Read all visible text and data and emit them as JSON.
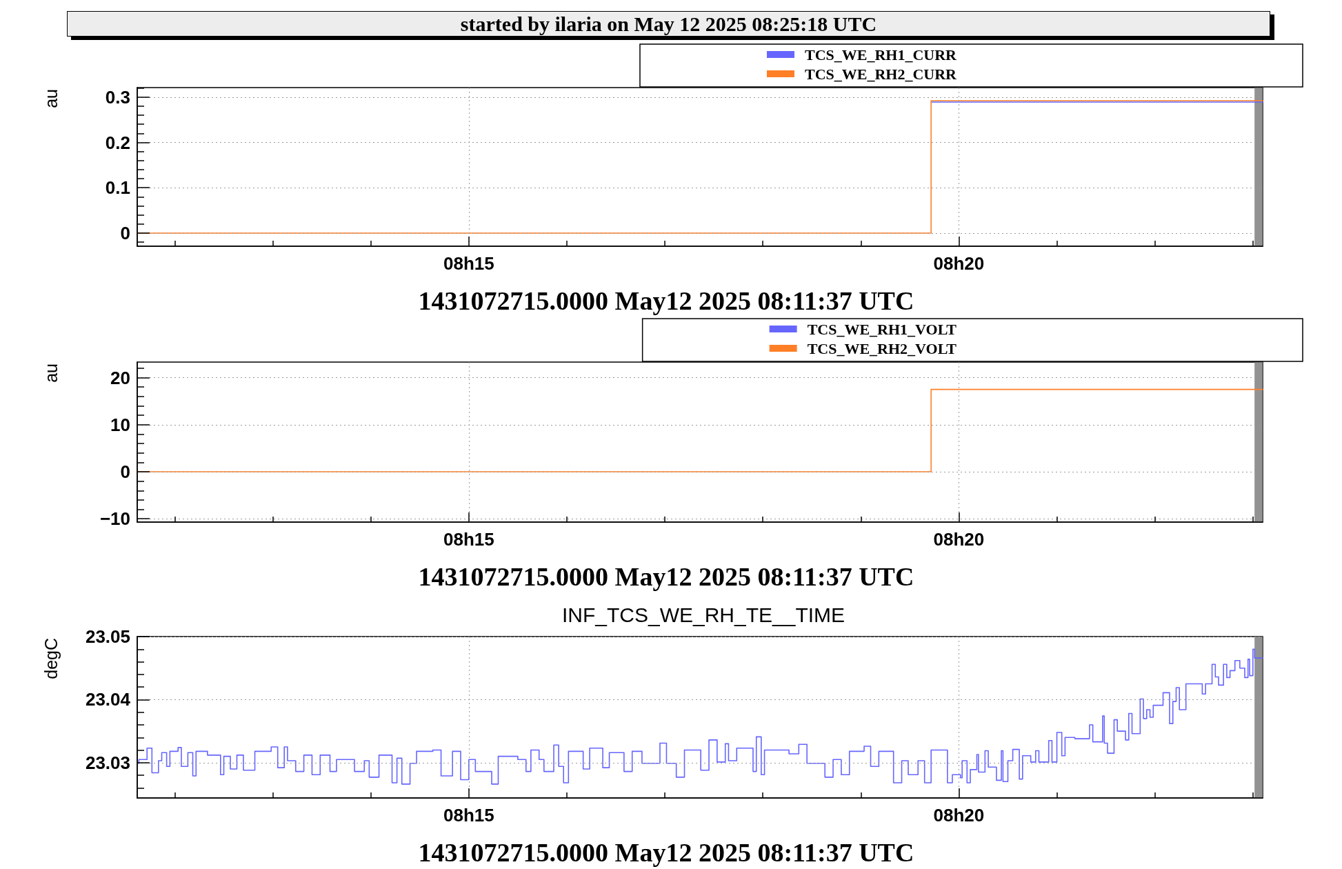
{
  "chart_data": [
    {
      "type": "step",
      "title": "started by ilaria on May 12 2025 08:25:18 UTC",
      "xlabel": "1431072715.0000 May12 2025 08:11:37 UTC",
      "ylabel": "au",
      "x": [
        "2025-05-12T08:11:37",
        "2025-05-12T08:19:43",
        "2025-05-12T08:23:06"
      ],
      "series": [
        {
          "name": "TCS_WE_RH1_CURR",
          "color": "#6666ff",
          "values": [
            null,
            0.289,
            0.289
          ]
        },
        {
          "name": "TCS_WE_RH2_CURR",
          "color": "#ff7f27",
          "values": [
            0,
            0.292,
            0.292
          ]
        }
      ],
      "xlim": [
        "2025-05-12T08:11:37",
        "2025-05-12T08:23:06"
      ],
      "xticks": [
        {
          "value": "2025-05-12T08:12",
          "label": null
        },
        {
          "value": "2025-05-12T08:13",
          "label": null
        },
        {
          "value": "2025-05-12T08:14",
          "label": null
        },
        {
          "value": "2025-05-12T08:15",
          "label": "08h15"
        },
        {
          "value": "2025-05-12T08:16",
          "label": null
        },
        {
          "value": "2025-05-12T08:17",
          "label": null
        },
        {
          "value": "2025-05-12T08:18",
          "label": null
        },
        {
          "value": "2025-05-12T08:19",
          "label": null
        },
        {
          "value": "2025-05-12T08:20",
          "label": "08h20"
        },
        {
          "value": "2025-05-12T08:21",
          "label": null
        },
        {
          "value": "2025-05-12T08:22",
          "label": null
        },
        {
          "value": "2025-05-12T08:23",
          "label": null
        }
      ],
      "ylim": [
        -0.029,
        0.321
      ],
      "yticks": [
        {
          "value": -0.02,
          "label": null
        },
        0,
        {
          "value": 0.02,
          "label": null
        },
        {
          "value": 0.04,
          "label": null
        },
        {
          "value": 0.06,
          "label": null
        },
        {
          "value": 0.08,
          "label": null
        },
        0.1,
        {
          "value": 0.12,
          "label": null
        },
        {
          "value": 0.14,
          "label": null
        },
        {
          "value": 0.16,
          "label": null
        },
        {
          "value": 0.18,
          "label": null
        },
        0.2,
        {
          "value": 0.22,
          "label": null
        },
        {
          "value": 0.24,
          "label": null
        },
        {
          "value": 0.26,
          "label": null
        },
        {
          "value": 0.28,
          "label": null
        },
        0.3,
        {
          "value": 0.32,
          "label": null
        }
      ],
      "grid": true,
      "legend": "top right",
      "bands": [
        {
          "axis": "x",
          "from": "2025-05-12T08:23:01",
          "to": "2025-05-12T08:23:06",
          "color": "#7f7f7f"
        }
      ]
    },
    {
      "type": "step",
      "xlabel": "1431072715.0000 May12 2025 08:11:37 UTC",
      "ylabel": "au",
      "x": [
        "2025-05-12T08:11:37",
        "2025-05-12T08:19:43",
        "2025-05-12T08:23:06"
      ],
      "series": [
        {
          "name": "TCS_WE_RH1_VOLT",
          "color": "#6666ff",
          "values": [
            null,
            null,
            null
          ]
        },
        {
          "name": "TCS_WE_RH2_VOLT",
          "color": "#ff7f27",
          "values": [
            0,
            17.5,
            17.5
          ]
        }
      ],
      "xlim": [
        "2025-05-12T08:11:37",
        "2025-05-12T08:23:06"
      ],
      "xticks": [
        {
          "value": "2025-05-12T08:12",
          "label": null
        },
        {
          "value": "2025-05-12T08:13",
          "label": null
        },
        {
          "value": "2025-05-12T08:14",
          "label": null
        },
        {
          "value": "2025-05-12T08:15",
          "label": "08h15"
        },
        {
          "value": "2025-05-12T08:16",
          "label": null
        },
        {
          "value": "2025-05-12T08:17",
          "label": null
        },
        {
          "value": "2025-05-12T08:18",
          "label": null
        },
        {
          "value": "2025-05-12T08:19",
          "label": null
        },
        {
          "value": "2025-05-12T08:20",
          "label": "08h20"
        },
        {
          "value": "2025-05-12T08:21",
          "label": null
        },
        {
          "value": "2025-05-12T08:22",
          "label": null
        },
        {
          "value": "2025-05-12T08:23",
          "label": null
        }
      ],
      "ylim": [
        -10.7,
        23.3
      ],
      "yticks": [
        {
          "value": -10,
          "label": "−10"
        },
        {
          "value": -8,
          "label": null
        },
        {
          "value": -6,
          "label": null
        },
        {
          "value": -4,
          "label": null
        },
        {
          "value": -2,
          "label": null
        },
        0,
        {
          "value": 2,
          "label": null
        },
        {
          "value": 4,
          "label": null
        },
        {
          "value": 6,
          "label": null
        },
        {
          "value": 8,
          "label": null
        },
        10,
        {
          "value": 12,
          "label": null
        },
        {
          "value": 14,
          "label": null
        },
        {
          "value": 16,
          "label": null
        },
        {
          "value": 18,
          "label": null
        },
        20,
        {
          "value": 22,
          "label": null
        }
      ],
      "grid": true,
      "legend": "top right",
      "bands": [
        {
          "axis": "x",
          "from": "2025-05-12T08:23:01",
          "to": "2025-05-12T08:23:06",
          "color": "#7f7f7f"
        }
      ]
    },
    {
      "type": "step",
      "title": "INF_TCS_WE_RH_TE__TIME",
      "xlabel": "1431072715.0000 May12 2025 08:11:37 UTC",
      "ylabel": "degC",
      "x": [
        "2025-05-12T08:11:37",
        "2025-05-12T08:11:38",
        "2025-05-12T08:11:43",
        "2025-05-12T08:11:46",
        "2025-05-12T08:11:50",
        "2025-05-12T08:11:52",
        "2025-05-12T08:11:55",
        "2025-05-12T08:11:57",
        "2025-05-12T08:12:02",
        "2025-05-12T08:12:04",
        "2025-05-12T08:12:08",
        "2025-05-12T08:12:11",
        "2025-05-12T08:12:13",
        "2025-05-12T08:12:20",
        "2025-05-12T08:12:28",
        "2025-05-12T08:12:30",
        "2025-05-12T08:12:34",
        "2025-05-12T08:12:38",
        "2025-05-12T08:12:42",
        "2025-05-12T08:12:49",
        "2025-05-12T08:12:59",
        "2025-05-12T08:13:03",
        "2025-05-12T08:13:07",
        "2025-05-12T08:13:09",
        "2025-05-12T08:13:14",
        "2025-05-12T08:13:19",
        "2025-05-12T08:13:24",
        "2025-05-12T08:13:29",
        "2025-05-12T08:13:35",
        "2025-05-12T08:13:39",
        "2025-05-12T08:13:50",
        "2025-05-12T08:13:56",
        "2025-05-12T08:13:59",
        "2025-05-12T08:14:05",
        "2025-05-12T08:14:13",
        "2025-05-12T08:14:16",
        "2025-05-12T08:14:19",
        "2025-05-12T08:14:24",
        "2025-05-12T08:14:28",
        "2025-05-12T08:14:38",
        "2025-05-12T08:14:43",
        "2025-05-12T08:14:50",
        "2025-05-12T08:14:55",
        "2025-05-12T08:15:00",
        "2025-05-12T08:15:04",
        "2025-05-12T08:15:14",
        "2025-05-12T08:15:18",
        "2025-05-12T08:15:30",
        "2025-05-12T08:15:35",
        "2025-05-12T08:15:38",
        "2025-05-12T08:15:43",
        "2025-05-12T08:15:46",
        "2025-05-12T08:15:52",
        "2025-05-12T08:15:55",
        "2025-05-12T08:15:58",
        "2025-05-12T08:16:01",
        "2025-05-12T08:16:10",
        "2025-05-12T08:16:14",
        "2025-05-12T08:16:22",
        "2025-05-12T08:16:26",
        "2025-05-12T08:16:35",
        "2025-05-12T08:16:40",
        "2025-05-12T08:16:46",
        "2025-05-12T08:16:57",
        "2025-05-12T08:17:01",
        "2025-05-12T08:17:07",
        "2025-05-12T08:17:12",
        "2025-05-12T08:17:22",
        "2025-05-12T08:17:27",
        "2025-05-12T08:17:32",
        "2025-05-12T08:17:37",
        "2025-05-12T08:17:39",
        "2025-05-12T08:17:44",
        "2025-05-12T08:17:54",
        "2025-05-12T08:17:56",
        "2025-05-12T08:17:59",
        "2025-05-12T08:18:01",
        "2025-05-12T08:18:16",
        "2025-05-12T08:18:22",
        "2025-05-12T08:18:27",
        "2025-05-12T08:18:38",
        "2025-05-12T08:18:43",
        "2025-05-12T08:18:48",
        "2025-05-12T08:18:53",
        "2025-05-12T08:19:02",
        "2025-05-12T08:19:06",
        "2025-05-12T08:19:11",
        "2025-05-12T08:19:20",
        "2025-05-12T08:19:25",
        "2025-05-12T08:19:29",
        "2025-05-12T08:19:35",
        "2025-05-12T08:19:39",
        "2025-05-12T08:19:43",
        "2025-05-12T08:19:53",
        "2025-05-12T08:19:56",
        "2025-05-12T08:20:01",
        "2025-05-12T08:20:02",
        "2025-05-12T08:20:05",
        "2025-05-12T08:20:07",
        "2025-05-12T08:20:11",
        "2025-05-12T08:20:12",
        "2025-05-12T08:20:16",
        "2025-05-12T08:20:18",
        "2025-05-12T08:20:23",
        "2025-05-12T08:20:26",
        "2025-05-12T08:20:27",
        "2025-05-12T08:20:30",
        "2025-05-12T08:20:33",
        "2025-05-12T08:20:37",
        "2025-05-12T08:20:39",
        "2025-05-12T08:20:44",
        "2025-05-12T08:20:47",
        "2025-05-12T08:20:49",
        "2025-05-12T08:20:55",
        "2025-05-12T08:20:57",
        "2025-05-12T08:21:00",
        "2025-05-12T08:21:03",
        "2025-05-12T08:21:05",
        "2025-05-12T08:21:11",
        "2025-05-12T08:21:20",
        "2025-05-12T08:21:22",
        "2025-05-12T08:21:28",
        "2025-05-12T08:21:29",
        "2025-05-12T08:21:31",
        "2025-05-12T08:21:35",
        "2025-05-12T08:21:37",
        "2025-05-12T08:21:42",
        "2025-05-12T08:21:44",
        "2025-05-12T08:21:46",
        "2025-05-12T08:21:51",
        "2025-05-12T08:21:53",
        "2025-05-12T08:21:55",
        "2025-05-12T08:21:57",
        "2025-05-12T08:21:59",
        "2025-05-12T08:22:05",
        "2025-05-12T08:22:09",
        "2025-05-12T08:22:11",
        "2025-05-12T08:22:13",
        "2025-05-12T08:22:15",
        "2025-05-12T08:22:19",
        "2025-05-12T08:22:29",
        "2025-05-12T08:22:31",
        "2025-05-12T08:22:35",
        "2025-05-12T08:22:37",
        "2025-05-12T08:22:39",
        "2025-05-12T08:22:42",
        "2025-05-12T08:22:44",
        "2025-05-12T08:22:46",
        "2025-05-12T08:22:49",
        "2025-05-12T08:22:52",
        "2025-05-12T08:22:55",
        "2025-05-12T08:22:57",
        "2025-05-12T08:22:58",
        "2025-05-12T08:23:00",
        "2025-05-12T08:23:01",
        "2025-05-12T08:23:06"
      ],
      "series": [
        {
          "color": "#6666ff",
          "values": [
            23.0299,
            23.0305,
            23.0323,
            23.0284,
            23.0303,
            23.0316,
            23.0294,
            23.0318,
            23.0324,
            23.0294,
            23.0316,
            23.0279,
            23.0318,
            23.0312,
            23.0281,
            23.031,
            23.029,
            23.0312,
            23.0288,
            23.0318,
            23.0325,
            23.0292,
            23.0325,
            23.0303,
            23.0286,
            23.0312,
            23.0281,
            23.0312,
            23.0286,
            23.0305,
            23.0286,
            23.0303,
            23.0277,
            23.0312,
            23.0268,
            23.0307,
            23.0266,
            23.0299,
            23.0318,
            23.032,
            23.0279,
            23.0318,
            23.0273,
            23.0305,
            23.0286,
            23.0266,
            23.031,
            23.0305,
            23.0286,
            23.032,
            23.0305,
            23.0286,
            23.0328,
            23.0294,
            23.0268,
            23.0318,
            23.029,
            23.0323,
            23.0292,
            23.0316,
            23.0286,
            23.0318,
            23.0299,
            23.0331,
            23.0299,
            23.0277,
            23.032,
            23.0288,
            23.0336,
            23.0301,
            23.033,
            23.0303,
            23.0323,
            23.0286,
            23.0341,
            23.0281,
            23.032,
            23.0314,
            23.0329,
            23.0299,
            23.0277,
            23.0305,
            23.0281,
            23.0318,
            23.0326,
            23.0294,
            23.0318,
            23.0268,
            23.0303,
            23.0281,
            23.0303,
            23.0268,
            23.032,
            23.0268,
            23.0281,
            23.0276,
            23.0303,
            23.0268,
            23.0289,
            23.0313,
            23.0285,
            23.0319,
            23.0293,
            23.0272,
            23.0319,
            23.027,
            23.0303,
            23.0321,
            23.0274,
            23.0311,
            23.0301,
            23.0319,
            23.0301,
            23.0335,
            23.0301,
            23.0348,
            23.0311,
            23.034,
            23.0338,
            23.036,
            23.0333,
            23.0374,
            23.0331,
            23.0315,
            23.0368,
            23.035,
            23.0336,
            23.0378,
            23.0346,
            23.0401,
            23.037,
            23.0384,
            23.0372,
            23.0391,
            23.0411,
            23.0362,
            23.0397,
            23.0419,
            23.0384,
            23.0425,
            23.0409,
            23.0425,
            23.0456,
            23.0436,
            23.0423,
            23.0456,
            23.0435,
            23.0446,
            23.0462,
            23.045,
            23.0435,
            23.0464,
            23.0438,
            23.048,
            23.0466,
            23.0466
          ]
        }
      ],
      "xlim": [
        "2025-05-12T08:11:37",
        "2025-05-12T08:23:06"
      ],
      "xticks": [
        {
          "value": "2025-05-12T08:12",
          "label": null
        },
        {
          "value": "2025-05-12T08:13",
          "label": null
        },
        {
          "value": "2025-05-12T08:14",
          "label": null
        },
        {
          "value": "2025-05-12T08:15",
          "label": "08h15"
        },
        {
          "value": "2025-05-12T08:16",
          "label": null
        },
        {
          "value": "2025-05-12T08:17",
          "label": null
        },
        {
          "value": "2025-05-12T08:18",
          "label": null
        },
        {
          "value": "2025-05-12T08:19",
          "label": null
        },
        {
          "value": "2025-05-12T08:20",
          "label": "08h20"
        },
        {
          "value": "2025-05-12T08:21",
          "label": null
        },
        {
          "value": "2025-05-12T08:22",
          "label": null
        },
        {
          "value": "2025-05-12T08:23",
          "label": null
        }
      ],
      "ylim": [
        23.0244,
        23.05
      ],
      "yticks": [
        {
          "value": 23.026,
          "label": null
        },
        {
          "value": 23.028,
          "label": null
        },
        23.03,
        {
          "value": 23.032,
          "label": null
        },
        {
          "value": 23.034,
          "label": null
        },
        {
          "value": 23.036,
          "label": null
        },
        {
          "value": 23.038,
          "label": null
        },
        23.04,
        {
          "value": 23.042,
          "label": null
        },
        {
          "value": 23.044,
          "label": null
        },
        {
          "value": 23.046,
          "label": null
        },
        {
          "value": 23.048,
          "label": null
        },
        23.05
      ],
      "grid": true,
      "bands": [
        {
          "axis": "x",
          "from": "2025-05-12T08:23:01",
          "to": "2025-05-12T08:23:06",
          "color": "#7f7f7f"
        }
      ]
    }
  ]
}
